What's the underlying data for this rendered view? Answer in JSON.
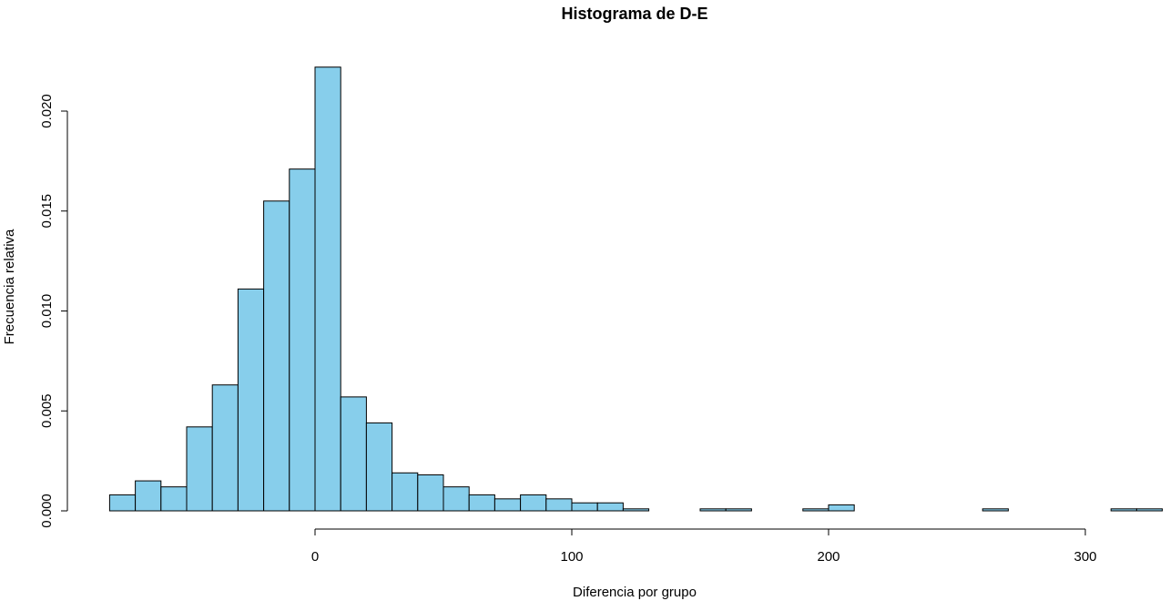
{
  "chart_data": {
    "type": "bar",
    "title": "Histograma de D-E",
    "xlabel": "Diferencia por grupo",
    "ylabel": "Frecuencia relativa",
    "bin_width": 10,
    "bin_starts": [
      -80,
      -70,
      -60,
      -50,
      -40,
      -30,
      -20,
      -10,
      0,
      10,
      20,
      30,
      40,
      50,
      60,
      70,
      80,
      90,
      100,
      110,
      120,
      130,
      140,
      150,
      160,
      170,
      180,
      190,
      200,
      210,
      220,
      230,
      240,
      250,
      260,
      270,
      280,
      290,
      300,
      310,
      320
    ],
    "values": [
      0.0008,
      0.0015,
      0.0012,
      0.0042,
      0.0063,
      0.0111,
      0.0155,
      0.0171,
      0.0222,
      0.0057,
      0.0044,
      0.0019,
      0.0018,
      0.0012,
      0.0008,
      0.0006,
      0.0008,
      0.0006,
      0.0004,
      0.0004,
      0.0001,
      0.0,
      0.0,
      0.0001,
      0.0001,
      0.0,
      0.0,
      0.0001,
      0.0003,
      0.0,
      0.0,
      0.0,
      0.0,
      0.0,
      0.0001,
      0.0,
      0.0,
      0.0,
      0.0,
      0.0001,
      0.0001
    ],
    "xlim": [
      -80,
      330
    ],
    "ylim": [
      0,
      0.0222
    ],
    "x_ticks": [
      0,
      100,
      200,
      300
    ],
    "x_tick_labels": [
      "0",
      "100",
      "200",
      "300"
    ],
    "y_ticks": [
      0,
      0.005,
      0.01,
      0.015,
      0.02
    ],
    "y_tick_labels": [
      "0.000",
      "0.005",
      "0.010",
      "0.015",
      "0.020"
    ],
    "grid": false,
    "legend": "none",
    "bar_color": "#87CEEB",
    "edge_color": "#000000"
  }
}
